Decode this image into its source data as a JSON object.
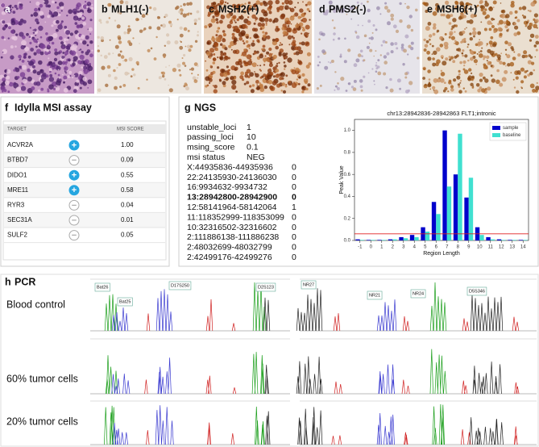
{
  "panels": [
    {
      "letter": "a"
    },
    {
      "letter": "b",
      "title": "MLH1(-)"
    },
    {
      "letter": "c",
      "title": "MSH2(+)"
    },
    {
      "letter": "d",
      "title": "PMS2(-)"
    },
    {
      "letter": "e",
      "title": "MSH6(+)"
    }
  ],
  "idylla": {
    "letter": "f",
    "title": "Idylla MSI assay",
    "columns": [
      "TARGET",
      "MSI SCORE"
    ],
    "rows": [
      {
        "target": "ACVR2A",
        "call": "+",
        "score": "1.00"
      },
      {
        "target": "BTBD7",
        "call": "−",
        "score": "0.09"
      },
      {
        "target": "DIDO1",
        "call": "+",
        "score": "0.55"
      },
      {
        "target": "MRE11",
        "call": "+",
        "score": "0.58"
      },
      {
        "target": "RYR3",
        "call": "−",
        "score": "0.04"
      },
      {
        "target": "SEC31A",
        "call": "−",
        "score": "0.01"
      },
      {
        "target": "SULF2",
        "call": "−",
        "score": "0.05"
      }
    ]
  },
  "ngs": {
    "letter": "g",
    "title": "NGS",
    "summary": [
      {
        "key": "unstable_loci",
        "value": 1
      },
      {
        "key": "passing_loci",
        "value": 10
      },
      {
        "key": "msing_score",
        "value": 0.1
      },
      {
        "key": "msi status",
        "value": "NEG"
      }
    ],
    "loci": [
      {
        "locus": "X:44935836-44935936",
        "count": 0
      },
      {
        "locus": "22:24135930-24136030",
        "count": 0
      },
      {
        "locus": "16:9934632-9934732",
        "count": 0
      },
      {
        "locus": "13:28942800-28942900",
        "count": 0,
        "bold": true
      },
      {
        "locus": "12:58141964-58142064",
        "count": 1
      },
      {
        "locus": "11:118352999-118353099",
        "count": 0
      },
      {
        "locus": "10:32316502-32316602",
        "count": 0
      },
      {
        "locus": "2:111886138-111886238",
        "count": 0
      },
      {
        "locus": "2:48032699-48032799",
        "count": 0
      },
      {
        "locus": "2:42499176-42499276",
        "count": 0
      }
    ]
  },
  "chart_data": {
    "type": "bar",
    "title": "chr13:28942836-28942863 FLT1;intronic",
    "x_label": "Region Length",
    "y_label": "Peak Value",
    "categories": [
      "-1",
      "0",
      "1",
      "2",
      "3",
      "4",
      "5",
      "6",
      "7",
      "8",
      "9",
      "10",
      "11",
      "12",
      "13",
      "14"
    ],
    "series": [
      {
        "name": "sample",
        "color": "#0000cc",
        "values": [
          0.01,
          0.005,
          0.005,
          0.01,
          0.03,
          0.05,
          0.12,
          0.35,
          1.0,
          0.6,
          0.39,
          0.12,
          0.03,
          0.01,
          0.005,
          0.005
        ]
      },
      {
        "name": "baseline",
        "color": "#40e0d0",
        "values": [
          0.005,
          0.005,
          0.005,
          0.01,
          0.02,
          0.03,
          0.08,
          0.24,
          0.49,
          0.97,
          0.57,
          0.05,
          0.01,
          0.005,
          0.005,
          0.005
        ]
      }
    ],
    "reference_line": {
      "value": 0.06,
      "color": "#e02020"
    },
    "ylim": [
      0,
      1.1
    ],
    "yticks": [
      {
        "value": 0,
        "label": "0.0"
      },
      {
        "value": 0.2,
        "label": "0.2"
      },
      {
        "value": 0.4,
        "label": "0.4"
      },
      {
        "value": 0.6,
        "label": "0.6"
      },
      {
        "value": 0.8,
        "label": "0.8"
      },
      {
        "value": 1.0,
        "label": "1.0"
      }
    ],
    "legend": "upper right"
  },
  "pcr": {
    "letter": "h",
    "title": "PCR",
    "samples": [
      "Blood control",
      "60% tumor cells",
      "20% tumor cells"
    ],
    "markers": [
      "Bat26",
      "Bat25",
      "D17S250",
      "D2S123",
      "NR27",
      "NR21",
      "NR24",
      "D5S346"
    ]
  }
}
